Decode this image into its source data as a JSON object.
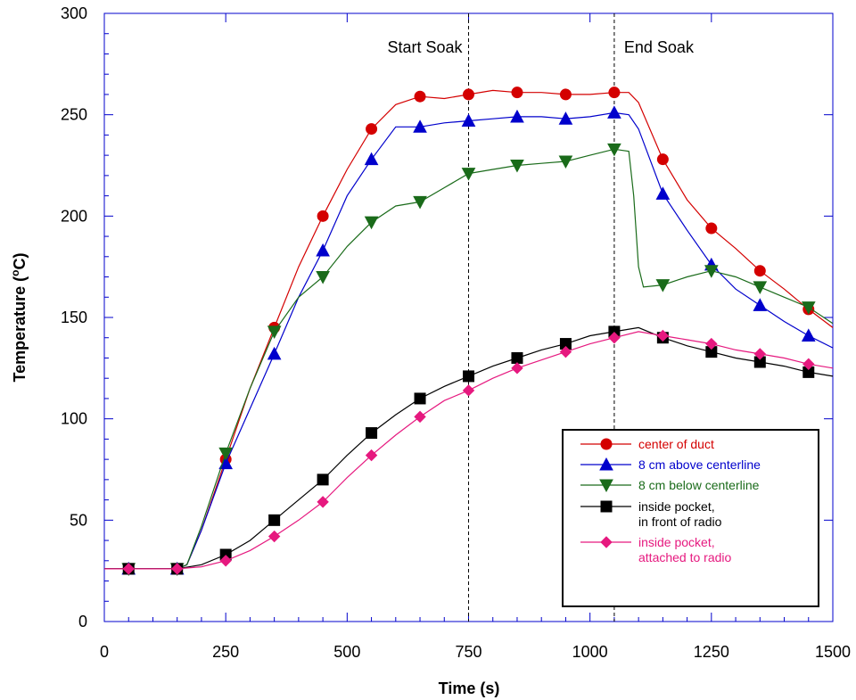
{
  "chart_data": {
    "type": "line",
    "xlabel": "Time (s)",
    "ylabel_main": "Temperature (",
    "ylabel_sup": "o",
    "ylabel_end": "C)",
    "xlim": [
      0,
      1500
    ],
    "ylim": [
      0,
      300
    ],
    "xticks": [
      0,
      250,
      500,
      750,
      1000,
      1250,
      1500
    ],
    "yticks": [
      0,
      50,
      100,
      150,
      200,
      250,
      300
    ],
    "grid": false,
    "legend_position": "lower-right",
    "annotations": [
      {
        "text": "Start Soak",
        "x": 750
      },
      {
        "text": "End Soak",
        "x": 1050
      }
    ],
    "series": [
      {
        "name": "center of duct",
        "color": "#d40000",
        "marker": "circle",
        "x": [
          0,
          50,
          100,
          150,
          170,
          200,
          250,
          300,
          350,
          400,
          450,
          500,
          550,
          600,
          650,
          700,
          750,
          800,
          850,
          900,
          950,
          1000,
          1050,
          1080,
          1100,
          1150,
          1200,
          1250,
          1300,
          1350,
          1400,
          1450,
          1500
        ],
        "y": [
          26,
          26,
          26,
          26,
          28,
          45,
          80,
          115,
          145,
          175,
          200,
          223,
          243,
          255,
          259,
          258,
          260,
          262,
          261,
          261,
          260,
          260,
          261,
          261,
          256,
          228,
          208,
          194,
          184,
          173,
          164,
          154,
          145
        ]
      },
      {
        "name": "8 cm above centerline",
        "color": "#0000cc",
        "marker": "triangle-up",
        "x": [
          0,
          50,
          100,
          150,
          170,
          200,
          250,
          300,
          350,
          400,
          450,
          500,
          550,
          600,
          650,
          700,
          750,
          800,
          850,
          900,
          950,
          1000,
          1050,
          1080,
          1100,
          1150,
          1200,
          1250,
          1300,
          1350,
          1400,
          1450,
          1500
        ],
        "y": [
          26,
          26,
          26,
          26,
          28,
          45,
          78,
          105,
          132,
          160,
          183,
          210,
          228,
          244,
          244,
          246,
          247,
          248,
          249,
          249,
          248,
          249,
          251,
          250,
          243,
          211,
          193,
          176,
          164,
          156,
          148,
          141,
          135
        ]
      },
      {
        "name": "8 cm below centerline",
        "color": "#1a6b1a",
        "marker": "triangle-down",
        "x": [
          0,
          50,
          100,
          150,
          170,
          200,
          250,
          300,
          350,
          400,
          450,
          500,
          550,
          600,
          650,
          700,
          750,
          800,
          850,
          900,
          950,
          1000,
          1050,
          1080,
          1090,
          1100,
          1110,
          1150,
          1200,
          1250,
          1300,
          1350,
          1400,
          1450,
          1500
        ],
        "y": [
          26,
          26,
          26,
          26,
          28,
          47,
          83,
          115,
          143,
          160,
          170,
          185,
          197,
          205,
          207,
          214,
          221,
          223,
          225,
          226,
          227,
          230,
          233,
          232,
          210,
          175,
          165,
          166,
          170,
          173,
          170,
          165,
          160,
          155,
          147
        ]
      },
      {
        "name": "inside pocket,\nin front of radio",
        "color": "#000000",
        "marker": "square",
        "x": [
          0,
          50,
          100,
          150,
          200,
          250,
          300,
          350,
          400,
          450,
          500,
          550,
          600,
          650,
          700,
          750,
          800,
          850,
          900,
          950,
          1000,
          1050,
          1100,
          1150,
          1200,
          1250,
          1300,
          1350,
          1400,
          1450,
          1500
        ],
        "y": [
          26,
          26,
          26,
          26,
          28,
          33,
          40,
          50,
          60,
          70,
          82,
          93,
          102,
          110,
          116,
          121,
          126,
          130,
          134,
          137,
          141,
          143,
          145,
          140,
          136,
          133,
          130,
          128,
          126,
          123,
          121
        ]
      },
      {
        "name": "inside pocket,\nattached to radio",
        "color": "#e6197f",
        "marker": "diamond",
        "x": [
          0,
          50,
          100,
          150,
          200,
          250,
          300,
          350,
          400,
          450,
          500,
          550,
          600,
          650,
          700,
          750,
          800,
          850,
          900,
          950,
          1000,
          1050,
          1100,
          1150,
          1200,
          1250,
          1300,
          1350,
          1400,
          1450,
          1500
        ],
        "y": [
          26,
          26,
          26,
          26,
          27,
          30,
          35,
          42,
          50,
          59,
          71,
          82,
          92,
          101,
          109,
          114,
          120,
          125,
          129,
          133,
          137,
          140,
          143,
          141,
          139,
          137,
          134,
          132,
          130,
          127,
          125
        ]
      }
    ]
  }
}
